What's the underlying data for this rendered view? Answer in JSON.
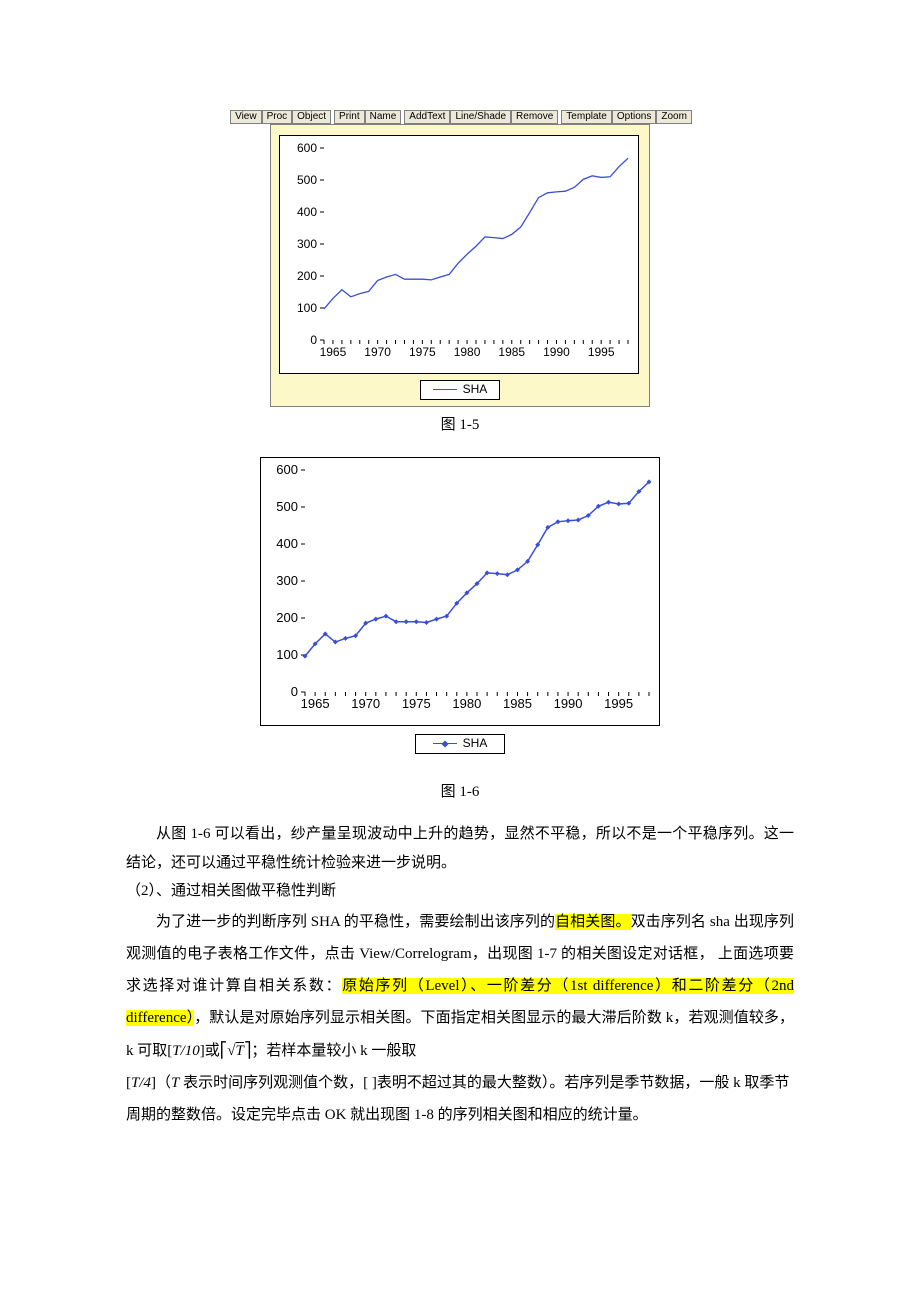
{
  "toolbar": {
    "buttons": [
      "View",
      "Proc",
      "Object",
      "",
      "Print",
      "Name",
      "",
      "AddText",
      "Line/Shade",
      "Remove",
      "",
      "Template",
      "Options",
      "Zoom"
    ]
  },
  "charts": {
    "fig1_5": {
      "type": "line",
      "series_label": "SHA",
      "series_color": "#3a4fd8",
      "line_width": 1.3,
      "markers": false,
      "y": {
        "min": 0,
        "max": 600,
        "step": 100,
        "ticks": [
          0,
          100,
          200,
          300,
          400,
          500,
          600
        ]
      },
      "x": {
        "min": 1964,
        "max": 1998,
        "label_ticks": [
          1965,
          1970,
          1975,
          1980,
          1985,
          1990,
          1995
        ]
      },
      "background_color": "#ffffff",
      "panel_bg": "#fdf8c7",
      "axis_color": "#000000",
      "tick_fontsize": 12,
      "years": [
        1964,
        1965,
        1966,
        1967,
        1968,
        1969,
        1970,
        1971,
        1972,
        1973,
        1974,
        1975,
        1976,
        1977,
        1978,
        1979,
        1980,
        1981,
        1982,
        1983,
        1984,
        1985,
        1986,
        1987,
        1988,
        1989,
        1990,
        1991,
        1992,
        1993,
        1994,
        1995,
        1996,
        1997,
        1998
      ],
      "values": [
        97,
        130,
        157,
        135,
        145,
        152,
        186,
        197,
        205,
        190,
        190,
        190,
        188,
        197,
        205,
        240,
        268,
        293,
        322,
        320,
        317,
        330,
        353,
        398,
        445,
        460,
        463,
        465,
        477,
        502,
        513,
        508,
        510,
        542,
        568
      ],
      "caption": "图 1-5"
    },
    "fig1_6": {
      "type": "line",
      "series_label": "SHA",
      "series_color": "#3a4fd8",
      "line_width": 1.5,
      "markers": true,
      "marker_style": "diamond",
      "marker_size": 5,
      "y": {
        "min": 0,
        "max": 600,
        "step": 100,
        "ticks": [
          0,
          100,
          200,
          300,
          400,
          500,
          600
        ]
      },
      "x": {
        "min": 1964,
        "max": 1998,
        "label_ticks": [
          1965,
          1970,
          1975,
          1980,
          1985,
          1990,
          1995
        ]
      },
      "background_color": "#ffffff",
      "axis_color": "#000000",
      "tick_fontsize": 13,
      "years": [
        1964,
        1965,
        1966,
        1967,
        1968,
        1969,
        1970,
        1971,
        1972,
        1973,
        1974,
        1975,
        1976,
        1977,
        1978,
        1979,
        1980,
        1981,
        1982,
        1983,
        1984,
        1985,
        1986,
        1987,
        1988,
        1989,
        1990,
        1991,
        1992,
        1993,
        1994,
        1995,
        1996,
        1997,
        1998
      ],
      "values": [
        97,
        130,
        157,
        135,
        145,
        152,
        186,
        197,
        205,
        190,
        190,
        190,
        188,
        197,
        205,
        240,
        268,
        293,
        322,
        320,
        317,
        330,
        353,
        398,
        445,
        460,
        463,
        465,
        477,
        502,
        513,
        508,
        510,
        542,
        568
      ],
      "caption": "图 1-6"
    }
  },
  "text": {
    "p1": "从图 1-6 可以看出，纱产量呈现波动中上升的趋势，显然不平稳，所以不是一个平稳序列。这一结论，还可以通过平稳性统计检验来进一步说明。",
    "p2": "（2）、通过相关图做平稳性判断",
    "p3a": "为了进一步的判断序列 SHA 的平稳性，需要绘制出该序列的",
    "p3_hl1": "自相关图。",
    "p3b": "双击序列名 sha 出现序列观测值的电子表格工作文件，点击 View/Correlogram，出现图 1-7 的相关图设定对话框， 上面选项要求选择对谁计算自相关系数：",
    "p3_hl2": "原始序列（Level）、一阶差分（1st difference）和二阶差分（2nd difference）",
    "p3c": "，默认是对原始序列显示相关图。下面指定相关图显示的最大滞后阶数 k，若观测值较多，k 可取",
    "formula_T10": "T/10",
    "p3d": "或",
    "formula_sqrtT": "√T",
    "p3e": "；若样本量较小 k 一般取",
    "formula_T4": "T/4",
    "p3f": "（",
    "p3g": " 表示时间序列观测值个数，",
    "p3h": "表明不超过其的最大整数）。若序列是季节数据，一般 k 取季节周期的整数倍。设定完毕点击 OK 就出现图 1-8 的序列相关图和相应的统计量。",
    "T_var": "T"
  }
}
